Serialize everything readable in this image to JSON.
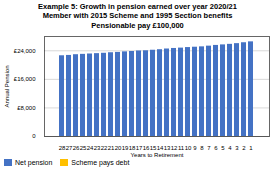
{
  "chart_data": {
    "type": "bar",
    "title": "Example 5: Growth in pension earned over year 2020/21\nMember with 2015 Scheme and 1995 Section benefits\nPensionable pay £100,000",
    "xlabel": "Years to Retirement",
    "ylabel": "Annual Pension",
    "categories": [
      "28",
      "27",
      "26",
      "25",
      "24",
      "23",
      "22",
      "21",
      "20",
      "19",
      "18",
      "17",
      "16",
      "15",
      "14",
      "13",
      "12",
      "11",
      "10",
      "9",
      "8",
      "7",
      "6",
      "5",
      "4",
      "3",
      "2",
      "1"
    ],
    "series": [
      {
        "name": "Net pension",
        "color": "#4472C4",
        "values": [
          22600,
          22700,
          22900,
          23000,
          23100,
          23200,
          23300,
          23450,
          23550,
          23700,
          23800,
          23950,
          24000,
          24150,
          24300,
          24500,
          24650,
          24750,
          24900,
          25000,
          25100,
          25300,
          25500,
          25650,
          25800,
          26000,
          26250,
          26500
        ]
      },
      {
        "name": "Scheme pays debt",
        "color": "#FFC000",
        "values": [
          null,
          null,
          null,
          null,
          null,
          null,
          null,
          null,
          null,
          null,
          null,
          null,
          null,
          null,
          null,
          null,
          null,
          null,
          null,
          null,
          null,
          null,
          null,
          null,
          null,
          null,
          null,
          null
        ]
      }
    ],
    "ylim": [
      0,
      28000
    ],
    "yticks": [
      0,
      {
        "value": 8000,
        "label": "£8,000"
      },
      {
        "value": 16000,
        "label": "£16,000"
      },
      {
        "value": 24000,
        "label": "£24,000"
      }
    ],
    "grid": true,
    "legend": "lower left"
  }
}
